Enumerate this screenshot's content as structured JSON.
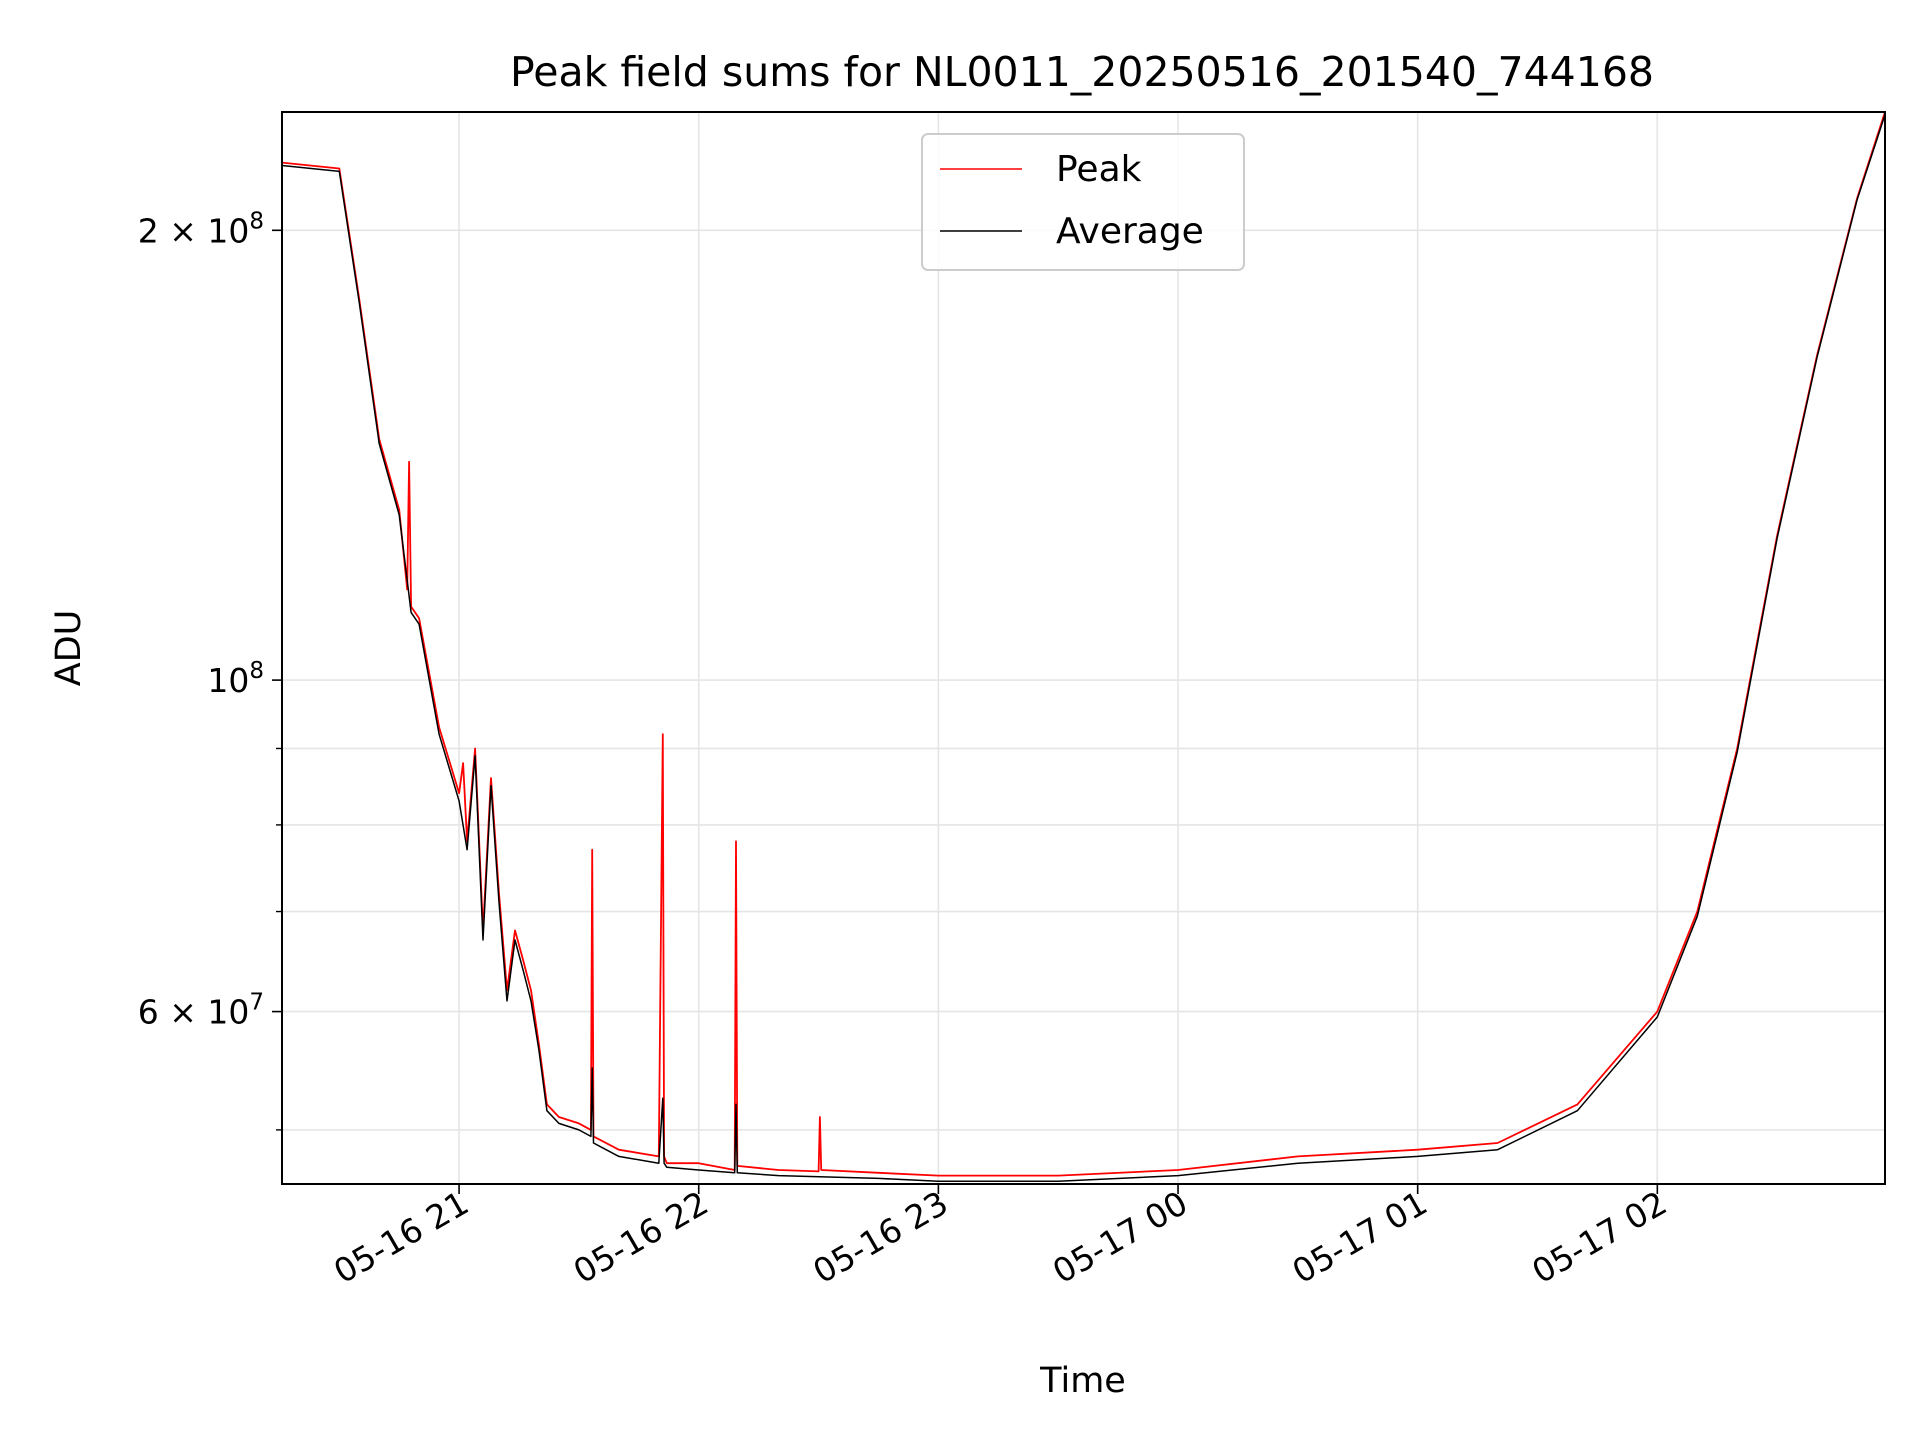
{
  "chart_data": {
    "type": "line",
    "title": "Peak field sums for NL0011_20250516_201540_744168",
    "xlabel": "Time",
    "ylabel": "ADU",
    "yscale": "log",
    "xlim": [
      "2025-05-16 20:15:40",
      "2025-05-17 02:57:00"
    ],
    "ylim": [
      46000000,
      240000000
    ],
    "grid": true,
    "legend_position": "top-center",
    "x_ticks": [
      "05-16 21",
      "05-16 22",
      "05-16 23",
      "05-17 00",
      "05-17 01",
      "05-17 02"
    ],
    "x_tick_times": [
      "2025-05-16 21:00",
      "2025-05-16 22:00",
      "2025-05-16 23:00",
      "2025-05-17 00:00",
      "2025-05-17 01:00",
      "2025-05-17 02:00"
    ],
    "y_ticks": [
      {
        "value": 200000000,
        "mantissa": "2",
        "exp": "8"
      },
      {
        "value": 100000000,
        "mantissa": "",
        "exp": "8"
      },
      {
        "value": 60000000,
        "mantissa": "6",
        "exp": "7"
      }
    ],
    "y_minor_ticks": [
      50000000,
      70000000,
      80000000,
      90000000
    ],
    "series": [
      {
        "name": "Peak",
        "color": "#ff0000",
        "x": [
          "2025-05-16 20:15:40",
          "2025-05-16 20:30",
          "2025-05-16 20:35",
          "2025-05-16 20:40",
          "2025-05-16 20:45",
          "2025-05-16 20:47",
          "2025-05-16 20:47:30",
          "2025-05-16 20:48",
          "2025-05-16 20:50",
          "2025-05-16 20:55",
          "2025-05-16 21:00",
          "2025-05-16 21:01",
          "2025-05-16 21:02",
          "2025-05-16 21:04",
          "2025-05-16 21:06",
          "2025-05-16 21:08",
          "2025-05-16 21:10",
          "2025-05-16 21:12",
          "2025-05-16 21:14",
          "2025-05-16 21:16",
          "2025-05-16 21:18",
          "2025-05-16 21:20",
          "2025-05-16 21:22",
          "2025-05-16 21:25",
          "2025-05-16 21:30",
          "2025-05-16 21:33",
          "2025-05-16 21:33:20",
          "2025-05-16 21:33:40",
          "2025-05-16 21:40",
          "2025-05-16 21:50",
          "2025-05-16 21:51",
          "2025-05-16 21:51:20",
          "2025-05-16 21:52",
          "2025-05-16 22:00",
          "2025-05-16 22:09",
          "2025-05-16 22:09:20",
          "2025-05-16 22:09:40",
          "2025-05-16 22:20",
          "2025-05-16 22:30",
          "2025-05-16 22:30:20",
          "2025-05-16 22:30:40",
          "2025-05-16 22:45",
          "2025-05-16 23:00",
          "2025-05-16 23:30",
          "2025-05-17 00:00",
          "2025-05-17 00:30",
          "2025-05-17 01:00",
          "2025-05-17 01:20",
          "2025-05-17 01:40",
          "2025-05-17 02:00",
          "2025-05-17 02:10",
          "2025-05-17 02:20",
          "2025-05-17 02:30",
          "2025-05-17 02:40",
          "2025-05-17 02:50",
          "2025-05-17 02:57"
        ],
        "values": [
          222000000,
          220000000,
          180000000,
          145000000,
          130000000,
          115000000,
          140000000,
          112000000,
          110000000,
          93000000,
          84000000,
          88000000,
          78000000,
          90000000,
          68000000,
          86000000,
          72000000,
          62000000,
          68000000,
          65000000,
          62000000,
          57000000,
          52000000,
          51000000,
          50500000,
          50000000,
          77000000,
          49500000,
          48500000,
          48000000,
          92000000,
          48000000,
          47500000,
          47500000,
          47000000,
          78000000,
          47300000,
          47000000,
          46900000,
          51000000,
          47000000,
          46800000,
          46600000,
          46600000,
          47000000,
          48000000,
          48500000,
          49000000,
          52000000,
          60000000,
          70000000,
          90000000,
          125000000,
          165000000,
          210000000,
          240000000
        ]
      },
      {
        "name": "Average",
        "color": "#000000",
        "x": [
          "2025-05-16 20:15:40",
          "2025-05-16 20:30",
          "2025-05-16 20:35",
          "2025-05-16 20:40",
          "2025-05-16 20:45",
          "2025-05-16 20:48",
          "2025-05-16 20:50",
          "2025-05-16 20:55",
          "2025-05-16 21:00",
          "2025-05-16 21:02",
          "2025-05-16 21:04",
          "2025-05-16 21:06",
          "2025-05-16 21:08",
          "2025-05-16 21:10",
          "2025-05-16 21:12",
          "2025-05-16 21:14",
          "2025-05-16 21:16",
          "2025-05-16 21:18",
          "2025-05-16 21:20",
          "2025-05-16 21:22",
          "2025-05-16 21:25",
          "2025-05-16 21:30",
          "2025-05-16 21:33",
          "2025-05-16 21:33:20",
          "2025-05-16 21:33:40",
          "2025-05-16 21:40",
          "2025-05-16 21:50",
          "2025-05-16 21:51",
          "2025-05-16 21:51:20",
          "2025-05-16 21:52",
          "2025-05-16 22:00",
          "2025-05-16 22:09",
          "2025-05-16 22:09:20",
          "2025-05-16 22:09:40",
          "2025-05-16 22:20",
          "2025-05-16 22:45",
          "2025-05-16 23:00",
          "2025-05-16 23:30",
          "2025-05-17 00:00",
          "2025-05-17 00:30",
          "2025-05-17 01:00",
          "2025-05-17 01:20",
          "2025-05-17 01:40",
          "2025-05-17 02:00",
          "2025-05-17 02:10",
          "2025-05-17 02:20",
          "2025-05-17 02:30",
          "2025-05-17 02:40",
          "2025-05-17 02:50",
          "2025-05-17 02:57"
        ],
        "values": [
          221000000,
          219000000,
          179000000,
          144000000,
          129000000,
          111000000,
          109000000,
          92000000,
          83000000,
          77000000,
          89000000,
          67000000,
          85000000,
          71000000,
          61000000,
          67000000,
          64000000,
          61000000,
          56500000,
          51500000,
          50500000,
          50000000,
          49500000,
          55000000,
          49000000,
          48000000,
          47500000,
          52500000,
          47500000,
          47200000,
          47000000,
          46800000,
          52000000,
          46800000,
          46600000,
          46400000,
          46200000,
          46200000,
          46600000,
          47500000,
          48000000,
          48500000,
          51500000,
          59500000,
          69500000,
          89500000,
          124500000,
          164500000,
          209500000,
          239000000
        ]
      }
    ]
  }
}
